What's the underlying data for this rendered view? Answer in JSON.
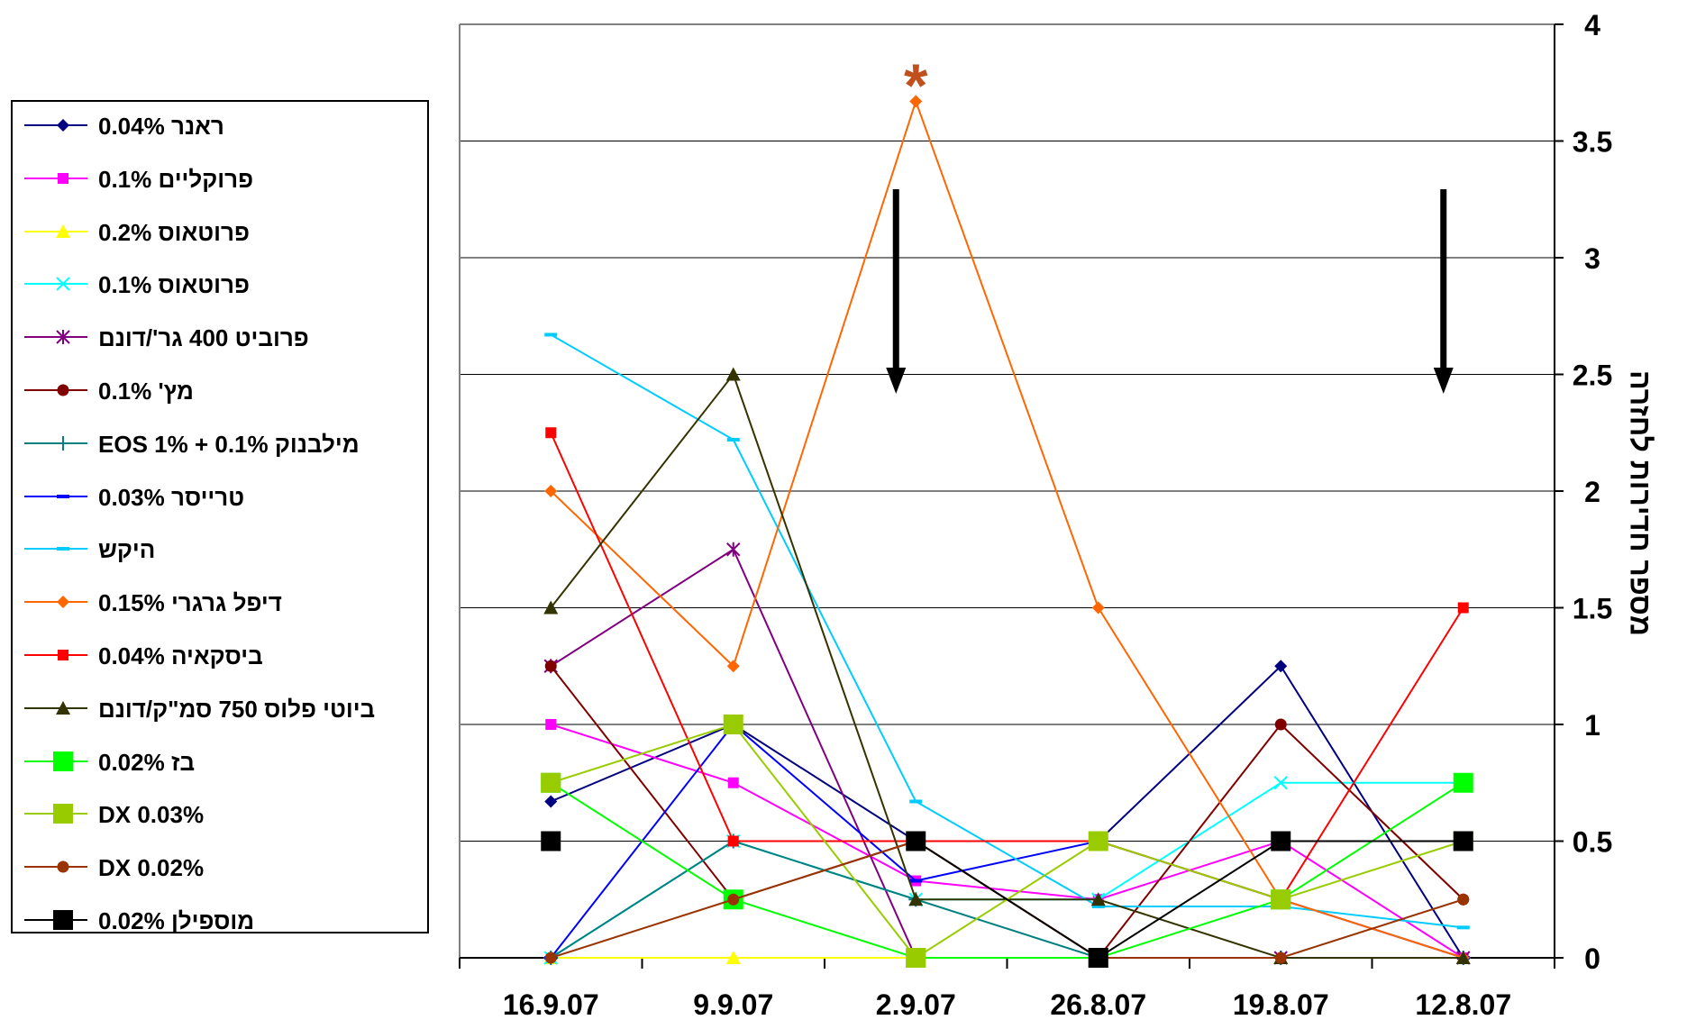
{
  "chart_data": {
    "type": "line",
    "ylabel": "מספר חדירות לחזרה",
    "ylim": [
      0,
      4
    ],
    "yticks": [
      "0",
      "0.5",
      "1",
      "1.5",
      "2",
      "2.5",
      "3",
      "3.5",
      "4"
    ],
    "categories": [
      "16.9.07",
      "9.9.07",
      "2.9.07",
      "26.8.07",
      "19.8.07",
      "12.8.07"
    ],
    "grid": true,
    "legend_position": "left",
    "annotations": [
      {
        "type": "asterisk",
        "text": "*",
        "category": "2.9.07",
        "color": "#C0501E"
      },
      {
        "type": "down-arrow",
        "category": "2.9.07"
      },
      {
        "type": "down-arrow",
        "category": "12.8.07"
      }
    ],
    "series": [
      {
        "name": "ראנר 0.04%",
        "color": "#000080",
        "marker": "diamond",
        "values": [
          0.67,
          1.0,
          0.5,
          0.5,
          1.25,
          0
        ]
      },
      {
        "name": "פרוקליים 0.1%",
        "color": "#FF00FF",
        "marker": "square",
        "values": [
          1.0,
          0.75,
          0.33,
          0.25,
          0.5,
          0
        ]
      },
      {
        "name": "פרוטאוס 0.2%",
        "color": "#FFFF00",
        "marker": "triangle",
        "values": [
          0,
          0,
          0,
          0,
          0,
          0
        ]
      },
      {
        "name": "פרוטאוס 0.1%",
        "color": "#00FFFF",
        "marker": "x",
        "values": [
          0,
          0.5,
          0.25,
          0.25,
          0.75,
          0.75
        ]
      },
      {
        "name": "פרוביט 400 גר'/דונם",
        "color": "#800080",
        "marker": "star",
        "values": [
          1.25,
          1.75,
          0,
          0,
          0,
          0
        ]
      },
      {
        "name": "מץ' 0.1%",
        "color": "#800000",
        "marker": "circle",
        "values": [
          1.25,
          0.25,
          0.5,
          0,
          1.0,
          0.25
        ]
      },
      {
        "name": "מילבנוק 0.1% + EOS 1%",
        "color": "#008080",
        "marker": "plus",
        "values": [
          0,
          0.5,
          0.25,
          0,
          0,
          0
        ]
      },
      {
        "name": "טרייסר 0.03%",
        "color": "#0000FF",
        "marker": "dash",
        "values": [
          0,
          1.0,
          0.33,
          0.5,
          0.25,
          0
        ]
      },
      {
        "name": "היקש",
        "color": "#00CCFF",
        "marker": "dash",
        "values": [
          2.67,
          2.22,
          0.67,
          0.22,
          0.22,
          0.13
        ]
      },
      {
        "name": "דיפל גרגרי 0.15%",
        "color": "#FF6600",
        "marker": "diamond",
        "values": [
          2.0,
          1.25,
          3.67,
          1.5,
          0.25,
          0
        ]
      },
      {
        "name": "ביסקאיה 0.04%",
        "color": "#FF0000",
        "marker": "square",
        "values": [
          2.25,
          0.5,
          0.5,
          0.5,
          0.25,
          1.5
        ]
      },
      {
        "name": "ביוטי פלוס 750 סמ\"ק/דונם",
        "color": "#333300",
        "marker": "triangle",
        "values": [
          1.5,
          2.5,
          0.25,
          0.25,
          0,
          0
        ]
      },
      {
        "name": "בז 0.02%",
        "color": "#00FF00",
        "marker": "bigsquare",
        "values": [
          0.75,
          0.25,
          0,
          0,
          0.25,
          0.75
        ]
      },
      {
        "name": "DX 0.03%",
        "color": "#99CC00",
        "marker": "bigsquare",
        "values": [
          0.75,
          1.0,
          0,
          0.5,
          0.25,
          0.5
        ]
      },
      {
        "name": "DX 0.02%",
        "color": "#993300",
        "marker": "circle",
        "values": [
          0,
          0.25,
          0.5,
          0,
          0,
          0.25
        ]
      },
      {
        "name": "מוספילן 0.02%",
        "color": "#000000",
        "marker": "bigsquare",
        "values": [
          0.5,
          null,
          0.5,
          0,
          0.5,
          0.5
        ]
      }
    ]
  }
}
